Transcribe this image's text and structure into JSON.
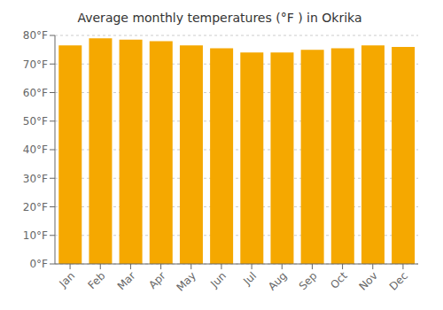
{
  "chart_data": {
    "type": "bar",
    "title": "Average monthly temperatures (°F ) in Okrika",
    "categories": [
      "Jan",
      "Feb",
      "Mar",
      "Apr",
      "May",
      "Jun",
      "Jul",
      "Aug",
      "Sep",
      "Oct",
      "Nov",
      "Dec"
    ],
    "values": [
      76.5,
      79.0,
      78.5,
      78.0,
      76.5,
      75.5,
      74.0,
      74.0,
      75.0,
      75.5,
      76.5,
      76.0
    ],
    "color": "#F5A800",
    "ylim": [
      0,
      80
    ],
    "yticks": [
      {
        "value": 0,
        "label": "0°F"
      },
      {
        "value": 10,
        "label": "10°F"
      },
      {
        "value": 20,
        "label": "20°F"
      },
      {
        "value": 30,
        "label": "30°F"
      },
      {
        "value": 40,
        "label": "40°F"
      },
      {
        "value": 50,
        "label": "50°F"
      },
      {
        "value": 60,
        "label": "60°F"
      },
      {
        "value": 70,
        "label": "70°F"
      },
      {
        "value": 80,
        "label": "80°F"
      }
    ],
    "grid": true
  }
}
